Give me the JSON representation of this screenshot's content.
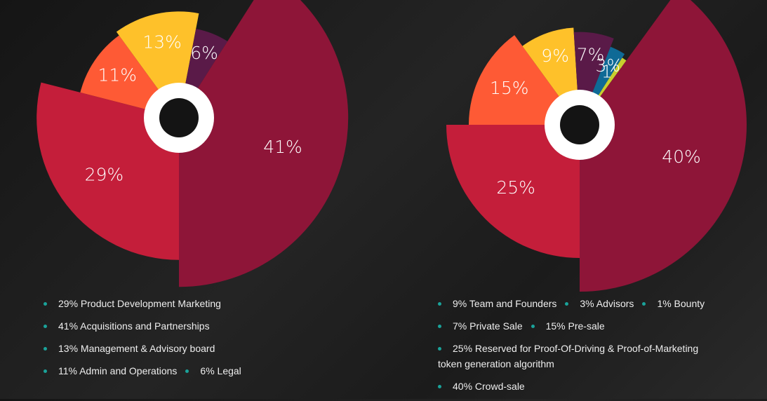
{
  "chart_data": [
    {
      "type": "pie",
      "values": [
        29,
        11,
        13,
        6,
        41
      ],
      "value_labels": [
        "29%",
        "11%",
        "13%",
        "6%",
        "41%"
      ],
      "colors": [
        "#c41e3a",
        "#fe5a35",
        "#fec12a",
        "#5a1a48",
        "#8e1538"
      ],
      "legend": [
        [
          "29% Product Development Marketing"
        ],
        [
          "41% Acquisitions and Partnerships"
        ],
        [
          "13% Management & Advisory board"
        ],
        [
          "11% Admin and Operations",
          "6% Legal"
        ]
      ]
    },
    {
      "type": "pie",
      "values": [
        25,
        15,
        9,
        7,
        3,
        1,
        40
      ],
      "value_labels": [
        "25%",
        "15%",
        "9%",
        "7%",
        "3%",
        "1%",
        "40%"
      ],
      "colors": [
        "#c41e3a",
        "#fe5a35",
        "#fec12a",
        "#5a1a48",
        "#0f6a96",
        "#c8cf2e",
        "#8e1538"
      ],
      "legend": [
        [
          "9% Team and Founders",
          "3% Advisors",
          "1% Bounty"
        ],
        [
          "7% Private Sale",
          "15% Pre-sale"
        ],
        [
          "25% Reserved for Proof-Of-Driving & Proof-of-Marketing token generation algorithm"
        ],
        [
          "40% Crowd-sale"
        ]
      ]
    }
  ]
}
